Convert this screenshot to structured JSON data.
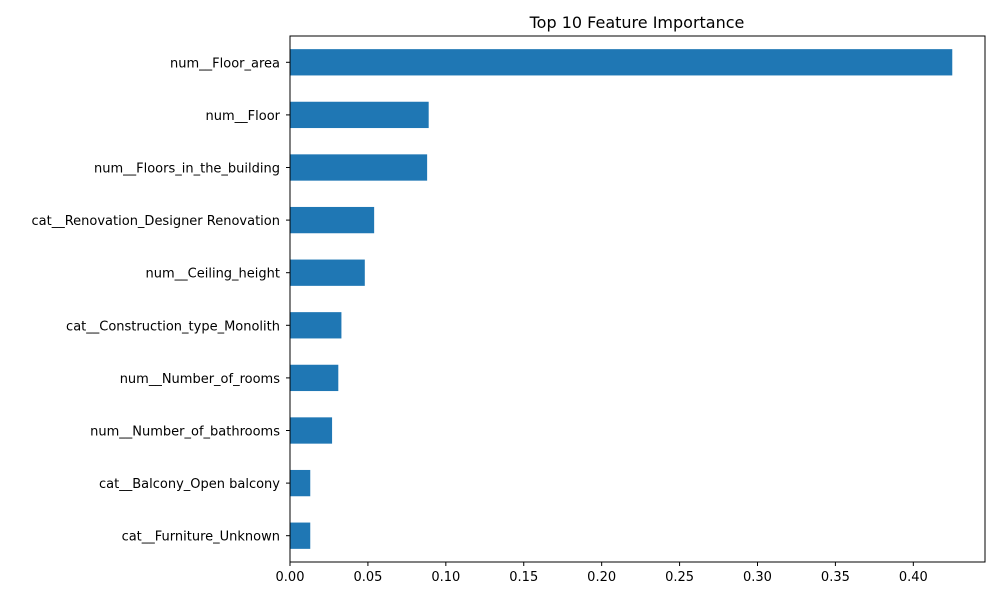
{
  "chart_data": {
    "type": "bar",
    "orientation": "horizontal",
    "title": "Top 10 Feature Importance",
    "xlabel": "",
    "ylabel": "",
    "categories": [
      "num__Floor_area",
      "num__Floor",
      "num__Floors_in_the_building",
      "cat__Renovation_Designer Renovation",
      "num__Ceiling_height",
      "cat__Construction_type_Monolith",
      "num__Number_of_rooms",
      "num__Number_of_bathrooms",
      "cat__Balcony_Open balcony",
      "cat__Furniture_Unknown"
    ],
    "values": [
      0.425,
      0.089,
      0.088,
      0.054,
      0.048,
      0.033,
      0.031,
      0.027,
      0.013,
      0.013
    ],
    "xlim": [
      0,
      0.446
    ],
    "xticks": [
      "0.00",
      "0.05",
      "0.10",
      "0.15",
      "0.20",
      "0.25",
      "0.30",
      "0.35",
      "0.40"
    ],
    "grid": false,
    "bar_color": "#1f77b4"
  }
}
